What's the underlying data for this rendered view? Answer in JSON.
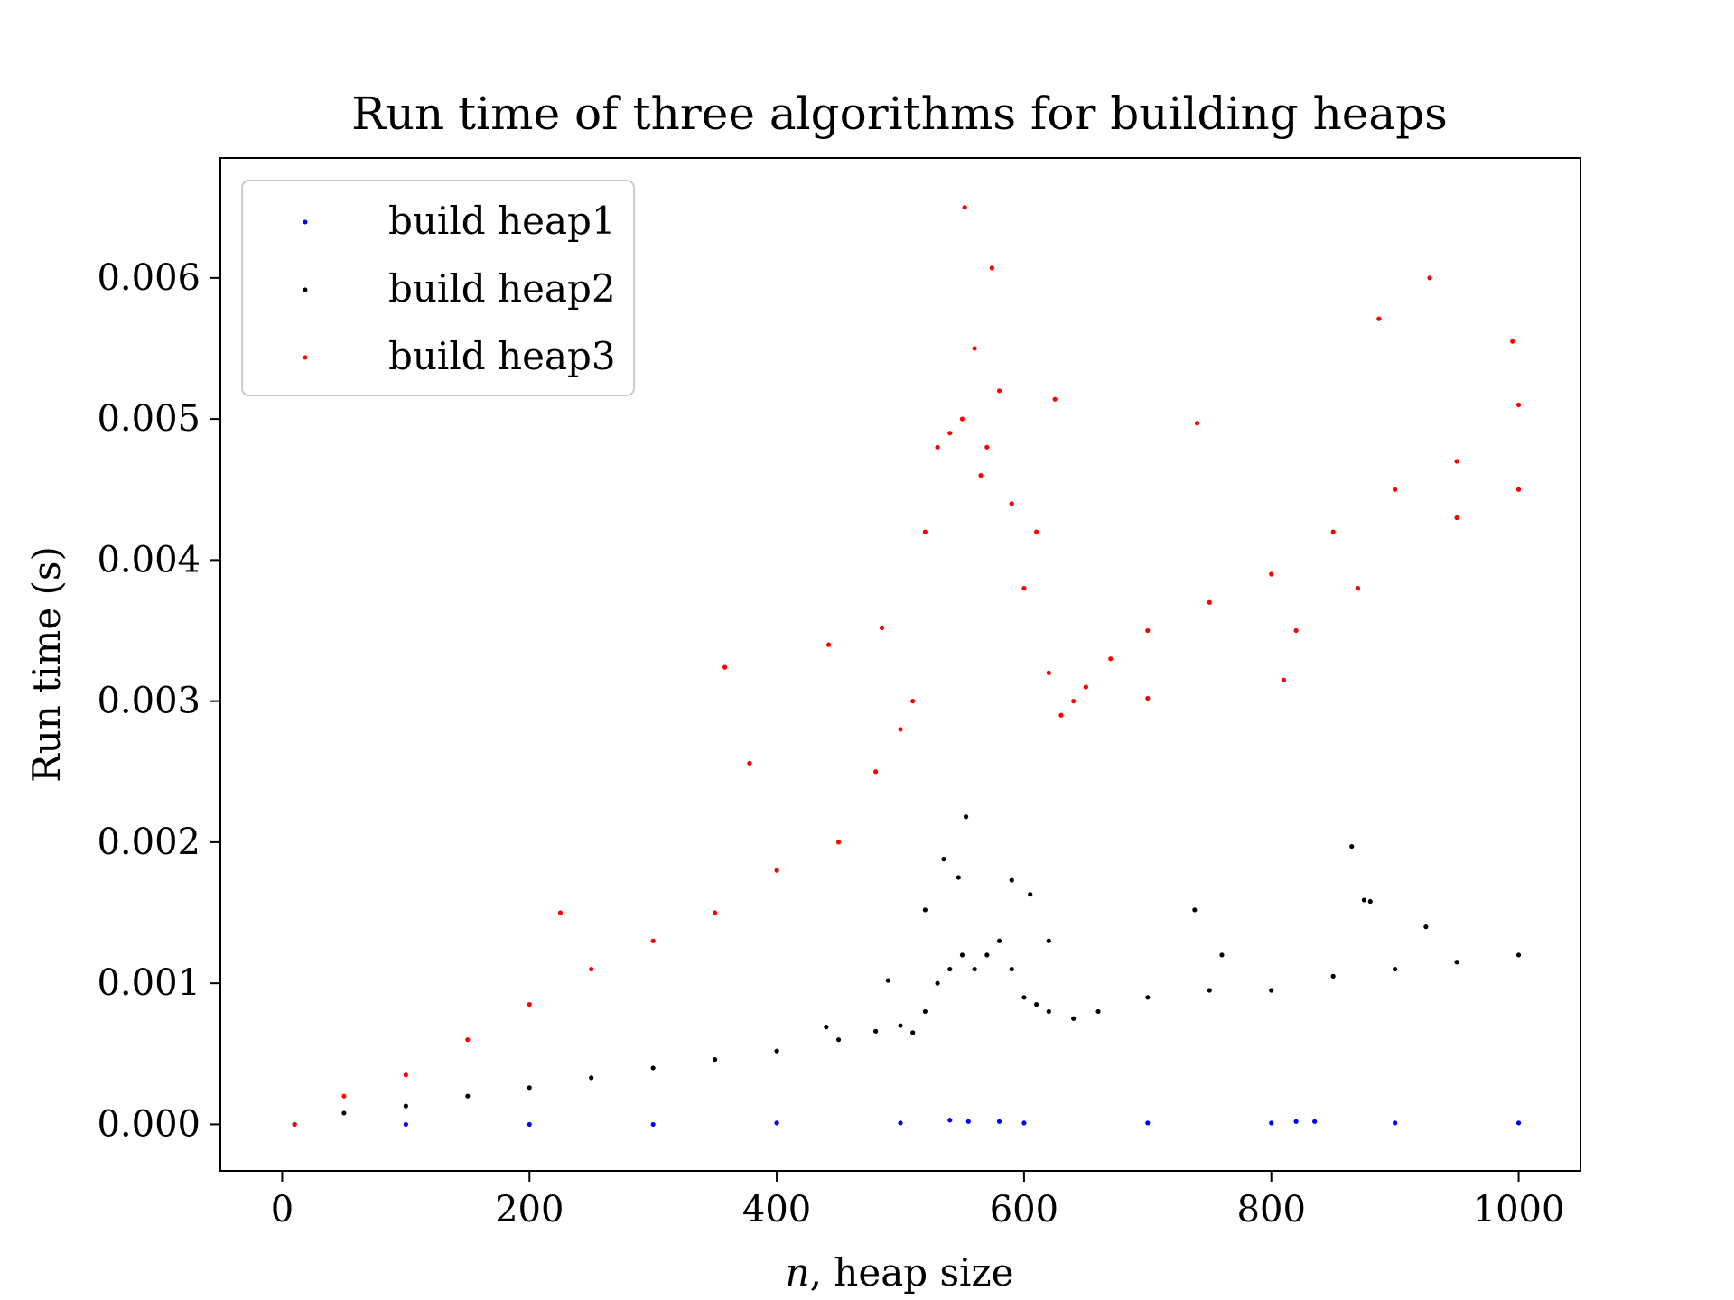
{
  "chart_data": {
    "type": "scatter",
    "title": "Run time of three algorithms for building heaps",
    "xlabel": "n, heap size",
    "ylabel": "Run time (s)",
    "xlim": [
      -50,
      1050
    ],
    "ylim": [
      -0.00033,
      0.00685
    ],
    "x_ticks": [
      0,
      200,
      400,
      600,
      800,
      1000
    ],
    "x_tick_labels": [
      "0",
      "200",
      "400",
      "600",
      "800",
      "1000"
    ],
    "y_ticks": [
      0.0,
      0.001,
      0.002,
      0.003,
      0.004,
      0.005,
      0.006
    ],
    "y_tick_labels": [
      "0.000",
      "0.001",
      "0.002",
      "0.003",
      "0.004",
      "0.005",
      "0.006"
    ],
    "grid": false,
    "legend_position": "upper-left",
    "legend": [
      "build heap1",
      "build heap2",
      "build heap3"
    ],
    "series": [
      {
        "name": "build heap1",
        "color": "#0000ff",
        "points": [
          [
            10,
            0.0
          ],
          [
            100,
            0.0
          ],
          [
            200,
            0.0
          ],
          [
            300,
            0.0
          ],
          [
            400,
            1e-05
          ],
          [
            500,
            1e-05
          ],
          [
            540,
            3e-05
          ],
          [
            555,
            2e-05
          ],
          [
            580,
            2e-05
          ],
          [
            600,
            1e-05
          ],
          [
            700,
            1e-05
          ],
          [
            800,
            1e-05
          ],
          [
            820,
            2e-05
          ],
          [
            835,
            2e-05
          ],
          [
            900,
            1e-05
          ],
          [
            1000,
            1e-05
          ]
        ]
      },
      {
        "name": "build heap2",
        "color": "#000000",
        "points": [
          [
            10,
            0.0
          ],
          [
            50,
            8e-05
          ],
          [
            100,
            0.00013
          ],
          [
            150,
            0.0002
          ],
          [
            200,
            0.00026
          ],
          [
            250,
            0.00033
          ],
          [
            300,
            0.0004
          ],
          [
            350,
            0.00046
          ],
          [
            400,
            0.00052
          ],
          [
            450,
            0.0006
          ],
          [
            480,
            0.00066
          ],
          [
            500,
            0.0007
          ],
          [
            510,
            0.00065
          ],
          [
            520,
            0.0008
          ],
          [
            530,
            0.001
          ],
          [
            540,
            0.0011
          ],
          [
            550,
            0.0012
          ],
          [
            560,
            0.0011
          ],
          [
            570,
            0.0012
          ],
          [
            580,
            0.0013
          ],
          [
            590,
            0.0011
          ],
          [
            600,
            0.0009
          ],
          [
            610,
            0.00085
          ],
          [
            620,
            0.0008
          ],
          [
            640,
            0.00075
          ],
          [
            660,
            0.0008
          ],
          [
            700,
            0.0009
          ],
          [
            750,
            0.00095
          ],
          [
            800,
            0.00095
          ],
          [
            850,
            0.00105
          ],
          [
            900,
            0.0011
          ],
          [
            950,
            0.00115
          ],
          [
            1000,
            0.0012
          ],
          [
            520,
            0.00152
          ],
          [
            535,
            0.00188
          ],
          [
            547,
            0.00175
          ],
          [
            553,
            0.00218
          ],
          [
            590,
            0.00173
          ],
          [
            605,
            0.00163
          ],
          [
            620,
            0.0013
          ],
          [
            738,
            0.00152
          ],
          [
            760,
            0.0012
          ],
          [
            865,
            0.00197
          ],
          [
            875,
            0.00159
          ],
          [
            880,
            0.00158
          ],
          [
            925,
            0.0014
          ],
          [
            490,
            0.00102
          ],
          [
            440,
            0.00069
          ]
        ]
      },
      {
        "name": "build heap3",
        "color": "#ff0000",
        "points": [
          [
            10,
            0.0
          ],
          [
            50,
            0.0002
          ],
          [
            100,
            0.00035
          ],
          [
            150,
            0.0006
          ],
          [
            200,
            0.00085
          ],
          [
            250,
            0.0011
          ],
          [
            300,
            0.0013
          ],
          [
            350,
            0.0015
          ],
          [
            400,
            0.0018
          ],
          [
            450,
            0.002
          ],
          [
            480,
            0.0025
          ],
          [
            500,
            0.0028
          ],
          [
            510,
            0.003
          ],
          [
            520,
            0.0042
          ],
          [
            530,
            0.0048
          ],
          [
            540,
            0.0049
          ],
          [
            550,
            0.005
          ],
          [
            560,
            0.0055
          ],
          [
            565,
            0.0046
          ],
          [
            570,
            0.0048
          ],
          [
            580,
            0.0052
          ],
          [
            590,
            0.0044
          ],
          [
            600,
            0.0038
          ],
          [
            610,
            0.0042
          ],
          [
            620,
            0.0032
          ],
          [
            630,
            0.0029
          ],
          [
            640,
            0.003
          ],
          [
            650,
            0.0031
          ],
          [
            670,
            0.0033
          ],
          [
            700,
            0.0035
          ],
          [
            750,
            0.0037
          ],
          [
            800,
            0.0039
          ],
          [
            820,
            0.0035
          ],
          [
            850,
            0.0042
          ],
          [
            870,
            0.0038
          ],
          [
            900,
            0.0045
          ],
          [
            950,
            0.0047
          ],
          [
            1000,
            0.0051
          ],
          [
            950,
            0.0043
          ],
          [
            1000,
            0.0045
          ],
          [
            225,
            0.0015
          ],
          [
            358,
            0.00324
          ],
          [
            378,
            0.00256
          ],
          [
            442,
            0.0034
          ],
          [
            485,
            0.00352
          ],
          [
            552,
            0.0065
          ],
          [
            574,
            0.00607
          ],
          [
            625,
            0.00514
          ],
          [
            740,
            0.00497
          ],
          [
            887,
            0.00571
          ],
          [
            928,
            0.006
          ],
          [
            995,
            0.00555
          ],
          [
            700,
            0.00302
          ],
          [
            810,
            0.00315
          ]
        ]
      }
    ]
  }
}
